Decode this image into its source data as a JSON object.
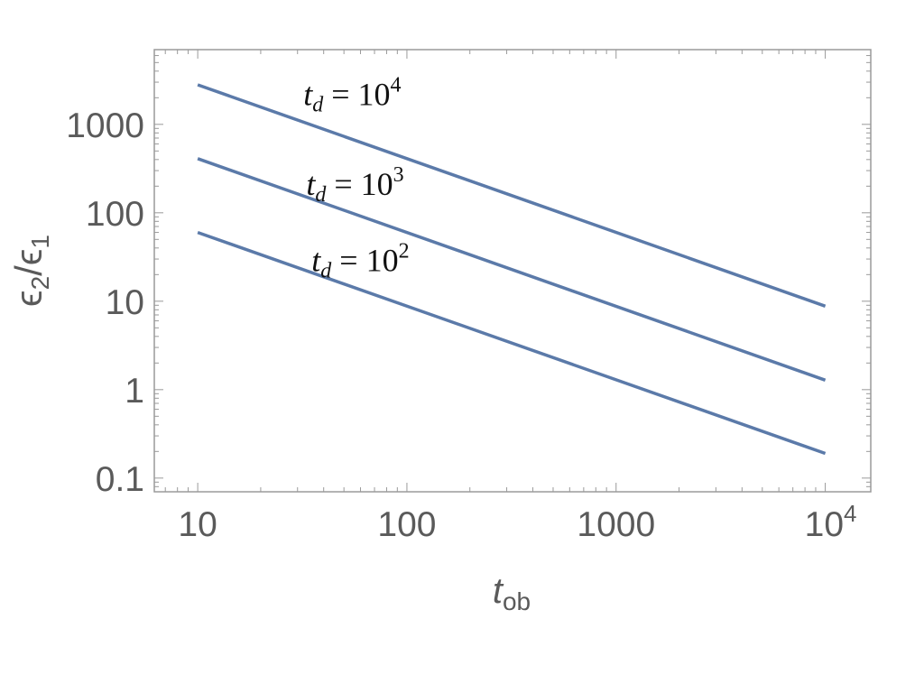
{
  "chart_data": {
    "type": "line",
    "x_scale": "log",
    "y_scale": "log",
    "xlim": [
      6.2,
      16500
    ],
    "ylim": [
      0.07,
      7000
    ],
    "x_ticks": [
      {
        "value": 10,
        "label": "10"
      },
      {
        "value": 100,
        "label": "100"
      },
      {
        "value": 1000,
        "label": "1000"
      },
      {
        "value": 10000,
        "label": "10",
        "sup": "4"
      }
    ],
    "y_ticks": [
      {
        "value": 0.1,
        "label": "0.1"
      },
      {
        "value": 1,
        "label": "1"
      },
      {
        "value": 10,
        "label": "10"
      },
      {
        "value": 100,
        "label": "100"
      },
      {
        "value": 1000,
        "label": "1000"
      }
    ],
    "xlabel": {
      "main": "t",
      "sub": "ob"
    },
    "ylabel": {
      "e1": "ϵ",
      "s1": "2",
      "slash": "/",
      "e2": "ϵ",
      "s2": "1"
    },
    "grid": false,
    "line_color": "#5b7aa9",
    "series": [
      {
        "name": "t_d = 10^4",
        "x": [
          10,
          10000
        ],
        "y": [
          2800,
          8.8
        ]
      },
      {
        "name": "t_d = 10^3",
        "x": [
          10,
          10000
        ],
        "y": [
          410,
          1.28
        ]
      },
      {
        "name": "t_d = 10^2",
        "x": [
          10,
          10000
        ],
        "y": [
          60,
          0.19
        ]
      }
    ],
    "annotations": [
      {
        "main": "t",
        "sub": "d",
        "eq": " = 10",
        "sup": "4",
        "x": 32,
        "y": 1650
      },
      {
        "main": "t",
        "sub": "d",
        "eq": " = 10",
        "sup": "3",
        "x": 33,
        "y": 160
      },
      {
        "main": "t",
        "sub": "d",
        "eq": " = 10",
        "sup": "2",
        "x": 35,
        "y": 22
      }
    ]
  }
}
